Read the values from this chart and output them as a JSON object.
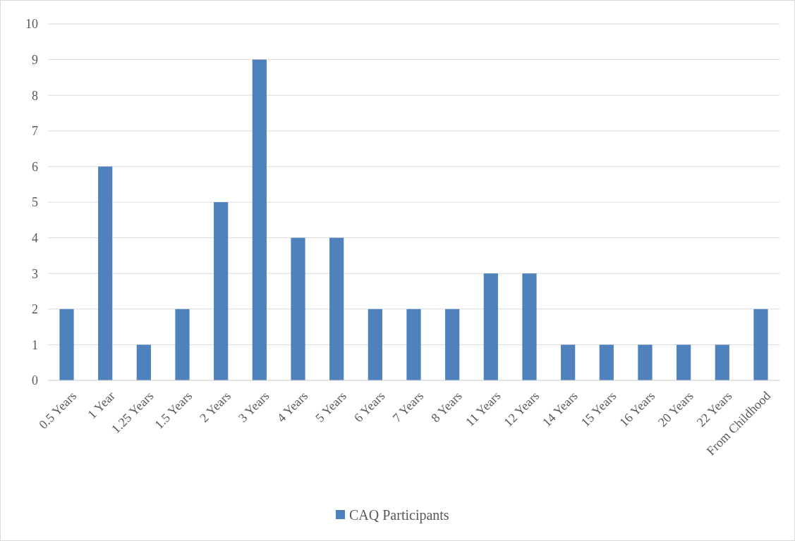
{
  "chart_data": {
    "type": "bar",
    "categories": [
      "0.5 Years",
      "1 Year",
      "1.25 Years",
      "1.5 Years",
      "2 Years",
      "3 Years",
      "4 Years",
      "5 Years",
      "6 Years",
      "7 Years",
      "8 Years",
      "11 Years",
      "12 Years",
      "14 Years",
      "15 Years",
      "16 Years",
      "20 Years",
      "22 Years",
      "From Childhood"
    ],
    "series": [
      {
        "name": "CAQ Participants",
        "color": "#4f81bd",
        "values": [
          2,
          6,
          1,
          2,
          5,
          9,
          4,
          4,
          2,
          2,
          2,
          3,
          3,
          1,
          1,
          1,
          1,
          1,
          2
        ]
      }
    ],
    "ylim": [
      0,
      10
    ],
    "yticks": [
      0,
      1,
      2,
      3,
      4,
      5,
      6,
      7,
      8,
      9,
      10
    ],
    "grid": "y",
    "legend": "bottom"
  }
}
